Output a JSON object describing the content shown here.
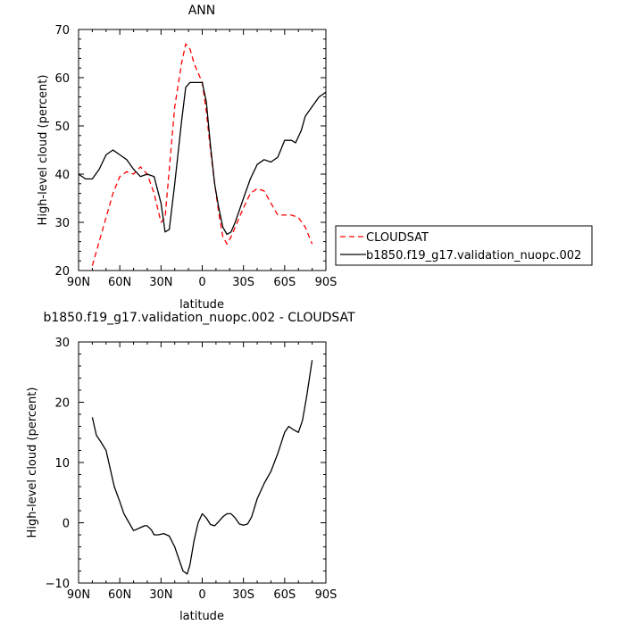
{
  "chart_data": [
    {
      "type": "line",
      "title": "ANN",
      "xlabel": "latitude",
      "ylabel": "High-level cloud (percent)",
      "xlim": [
        90,
        -90
      ],
      "ylim": [
        20,
        70
      ],
      "xticks": [
        90,
        60,
        30,
        0,
        -30,
        -60,
        -90
      ],
      "xtick_labels": [
        "90N",
        "60N",
        "30N",
        "0",
        "30S",
        "60S",
        "90S"
      ],
      "yticks": [
        20,
        30,
        40,
        50,
        60,
        70
      ],
      "ytick_labels": [
        "20",
        "30",
        "40",
        "50",
        "60",
        "70"
      ],
      "grid": false,
      "legend_position": "right",
      "series": [
        {
          "name": "CLOUDSAT",
          "color": "#ff0000",
          "dash": "dashed",
          "x": [
            80,
            75,
            70,
            65,
            60,
            55,
            50,
            45,
            40,
            35,
            30,
            27,
            24,
            20,
            15,
            12,
            9,
            6,
            3,
            0,
            -3,
            -6,
            -9,
            -12,
            -15,
            -18,
            -21,
            -24,
            -27,
            -30,
            -35,
            -40,
            -45,
            -50,
            -55,
            -60,
            -65,
            -70,
            -75,
            -80
          ],
          "y": [
            21,
            26,
            31,
            36,
            39.5,
            40.5,
            40,
            41.5,
            40,
            36,
            30,
            31,
            41,
            54,
            63,
            67,
            66,
            63,
            61,
            59,
            53,
            45,
            38,
            32,
            27,
            25.5,
            27,
            29,
            31,
            33,
            36,
            37,
            36.5,
            34,
            31.5,
            31.5,
            31.5,
            31,
            29,
            25.5
          ]
        },
        {
          "name": "b1850.f19_g17.validation_nuopc.002",
          "color": "#000000",
          "dash": "solid",
          "x": [
            90,
            85,
            80,
            75,
            70,
            65,
            60,
            55,
            50,
            45,
            40,
            35,
            30,
            27,
            24,
            20,
            15,
            12,
            9,
            6,
            3,
            0,
            -3,
            -6,
            -9,
            -12,
            -15,
            -18,
            -21,
            -24,
            -27,
            -30,
            -35,
            -40,
            -45,
            -50,
            -55,
            -60,
            -65,
            -68,
            -72,
            -75,
            -80,
            -85,
            -90
          ],
          "y": [
            40,
            39,
            39,
            41,
            44,
            45,
            44,
            43,
            41,
            39.5,
            40,
            39.5,
            34,
            28,
            28.5,
            38,
            51,
            58,
            59,
            59,
            59,
            59,
            55,
            46,
            38,
            33,
            29,
            27.5,
            28,
            30,
            32.5,
            35,
            39,
            42,
            43,
            42.5,
            43.5,
            47,
            47,
            46.5,
            49,
            52,
            54,
            56,
            57
          ]
        }
      ]
    },
    {
      "type": "line",
      "title": "b1850.f19_g17.validation_nuopc.002 - CLOUDSAT",
      "xlabel": "latitude",
      "ylabel": "High-level cloud (percent)",
      "xlim": [
        90,
        -90
      ],
      "ylim": [
        -10,
        30
      ],
      "xticks": [
        90,
        60,
        30,
        0,
        -30,
        -60,
        -90
      ],
      "xtick_labels": [
        "90N",
        "60N",
        "30N",
        "0",
        "30S",
        "60S",
        "90S"
      ],
      "yticks": [
        -10,
        0,
        10,
        20,
        30
      ],
      "ytick_labels": [
        "−10",
        "0",
        "10",
        "20",
        "30"
      ],
      "grid": false,
      "series": [
        {
          "color": "#000000",
          "dash": "solid",
          "x": [
            80,
            77,
            74,
            70,
            67,
            64,
            60,
            57,
            54,
            50,
            45,
            42,
            40,
            37,
            35,
            32,
            28,
            24,
            20,
            17,
            14,
            11,
            9,
            6,
            3,
            0,
            -3,
            -6,
            -9,
            -12,
            -15,
            -18,
            -21,
            -24,
            -27,
            -30,
            -33,
            -36,
            -40,
            -45,
            -50,
            -55,
            -60,
            -63,
            -66,
            -70,
            -73,
            -76,
            -80
          ],
          "y": [
            17.5,
            14.5,
            13.5,
            12,
            9,
            6,
            3.5,
            1.5,
            0.3,
            -1.3,
            -0.8,
            -0.5,
            -0.5,
            -1.2,
            -2,
            -2,
            -1.8,
            -2.2,
            -4,
            -6,
            -8,
            -8.5,
            -7,
            -3,
            0,
            1.5,
            0.8,
            -0.3,
            -0.5,
            0.2,
            1,
            1.5,
            1.5,
            0.8,
            -0.2,
            -0.4,
            -0.2,
            1,
            4,
            6.5,
            8.5,
            11.5,
            15,
            16,
            15.5,
            15,
            17,
            21,
            27
          ]
        }
      ]
    }
  ]
}
